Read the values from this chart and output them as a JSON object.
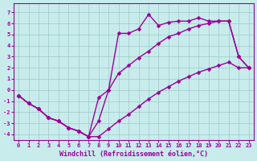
{
  "xlabel": "Windchill (Refroidissement éolien,°C)",
  "background_color": "#c8ecec",
  "grid_color": "#a0c8c8",
  "line_color": "#990099",
  "xlim_min": -0.5,
  "xlim_max": 23.5,
  "ylim_min": -4.5,
  "ylim_max": 7.8,
  "xticks": [
    0,
    1,
    2,
    3,
    4,
    5,
    6,
    7,
    8,
    9,
    10,
    11,
    12,
    13,
    14,
    15,
    16,
    17,
    18,
    19,
    20,
    21,
    22,
    23
  ],
  "yticks": [
    -4,
    -3,
    -2,
    -1,
    0,
    1,
    2,
    3,
    4,
    5,
    6,
    7
  ],
  "line1_x": [
    0,
    1,
    2,
    3,
    4,
    5,
    6,
    7,
    8,
    9,
    10,
    11,
    12,
    13,
    14,
    15,
    16,
    17,
    18,
    19,
    20,
    21,
    22,
    23
  ],
  "line1_y": [
    -0.5,
    -1.2,
    -1.7,
    -2.5,
    -2.8,
    -3.4,
    -3.7,
    -4.2,
    -2.8,
    0.0,
    5.1,
    5.1,
    5.5,
    6.8,
    5.8,
    6.1,
    6.2,
    6.2,
    6.5,
    6.2,
    6.2,
    6.2,
    3.0,
    2.0
  ],
  "line2_x": [
    0,
    1,
    2,
    3,
    4,
    5,
    6,
    7,
    8,
    9,
    10,
    11,
    12,
    13,
    14,
    15,
    16,
    17,
    18,
    19,
    20,
    21,
    22,
    23
  ],
  "line2_y": [
    -0.5,
    -1.2,
    -1.7,
    -2.5,
    -2.8,
    -3.4,
    -3.7,
    -4.2,
    -0.7,
    0.0,
    1.5,
    2.2,
    2.9,
    3.5,
    4.2,
    4.8,
    5.1,
    5.5,
    5.8,
    6.0,
    6.2,
    6.2,
    3.0,
    2.0
  ],
  "line3_x": [
    0,
    1,
    2,
    3,
    4,
    5,
    6,
    7,
    8,
    9,
    10,
    11,
    12,
    13,
    14,
    15,
    16,
    17,
    18,
    19,
    20,
    21,
    22,
    23
  ],
  "line3_y": [
    -0.5,
    -1.2,
    -1.7,
    -2.5,
    -2.8,
    -3.4,
    -3.7,
    -4.2,
    -4.2,
    -3.5,
    -2.8,
    -2.2,
    -1.5,
    -0.8,
    -0.2,
    0.3,
    0.8,
    1.2,
    1.6,
    1.9,
    2.2,
    2.5,
    2.0,
    2.0
  ],
  "markersize": 2.5,
  "linewidth": 1.0,
  "tick_fontsize": 5,
  "label_fontsize": 6
}
